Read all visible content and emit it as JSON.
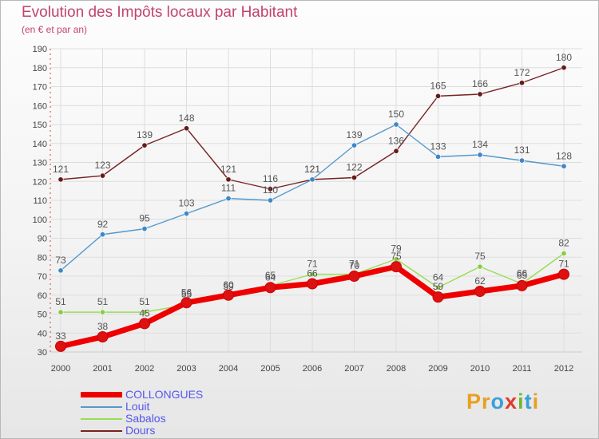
{
  "title": "Evolution des Impôts locaux par Habitant",
  "subtitle": "(en € et par an)",
  "logo": {
    "text": "Proxiti",
    "letters": [
      "P",
      "r",
      "o",
      "x",
      "i",
      "t",
      "i"
    ],
    "letter_colors": [
      "#e8a020",
      "#e8a020",
      "#3aa0d8",
      "#e03a2e",
      "#70b832",
      "#3aa0d8",
      "#e8a020"
    ]
  },
  "chart_data": {
    "type": "line",
    "title": "Evolution des Impôts locaux par Habitant",
    "subtitle": "(en € et par an)",
    "xlabel": "",
    "ylabel": "",
    "x": [
      "2000",
      "2001",
      "2002",
      "2003",
      "2004",
      "2005",
      "2006",
      "2007",
      "2008",
      "2009",
      "2010",
      "2011",
      "2012"
    ],
    "ylim": [
      30,
      190
    ],
    "yticks": [
      30,
      40,
      50,
      60,
      70,
      80,
      90,
      100,
      110,
      120,
      130,
      140,
      150,
      160,
      170,
      180,
      190
    ],
    "grid": true,
    "legend_position": "bottom-left",
    "series": [
      {
        "name": "COLLONGUES",
        "color": "#ee0000",
        "marker": "#dd1111",
        "width": "thick",
        "values": [
          33,
          38,
          45,
          56,
          60,
          64,
          66,
          70,
          75,
          59,
          62,
          65,
          71
        ],
        "labels": [
          "33",
          "38",
          "45",
          "56",
          "60",
          "64",
          "66",
          "70",
          "75",
          "59",
          "62",
          "65",
          "71"
        ]
      },
      {
        "name": "Louit",
        "color": "#5599cc",
        "marker": "#3c88c8",
        "width": "thin",
        "values": [
          73,
          92,
          95,
          103,
          111,
          110,
          121,
          139,
          150,
          133,
          134,
          131,
          128
        ],
        "labels": [
          "73",
          "92",
          "95",
          "103",
          "111",
          "110",
          "121",
          "139",
          "150",
          "133",
          "134",
          "131",
          "128"
        ]
      },
      {
        "name": "Sabalos",
        "color": "#99dd55",
        "marker": "#88cc44",
        "width": "thin",
        "values": [
          51,
          51,
          51,
          55,
          59,
          65,
          71,
          71,
          79,
          64,
          75,
          66,
          82
        ],
        "labels": [
          "51",
          "51",
          "51",
          "55",
          "59",
          "65",
          "71",
          "71",
          "79",
          "64",
          "75",
          "66",
          "82"
        ]
      },
      {
        "name": "Dours",
        "color": "#772222",
        "marker": "#661a1a",
        "width": "thin",
        "values": [
          121,
          123,
          139,
          148,
          121,
          116,
          121,
          122,
          136,
          165,
          166,
          172,
          180
        ],
        "labels": [
          "121",
          "123",
          "139",
          "148",
          "121",
          "116",
          "121",
          "122",
          "136",
          "165",
          "166",
          "172",
          "180"
        ]
      }
    ]
  }
}
